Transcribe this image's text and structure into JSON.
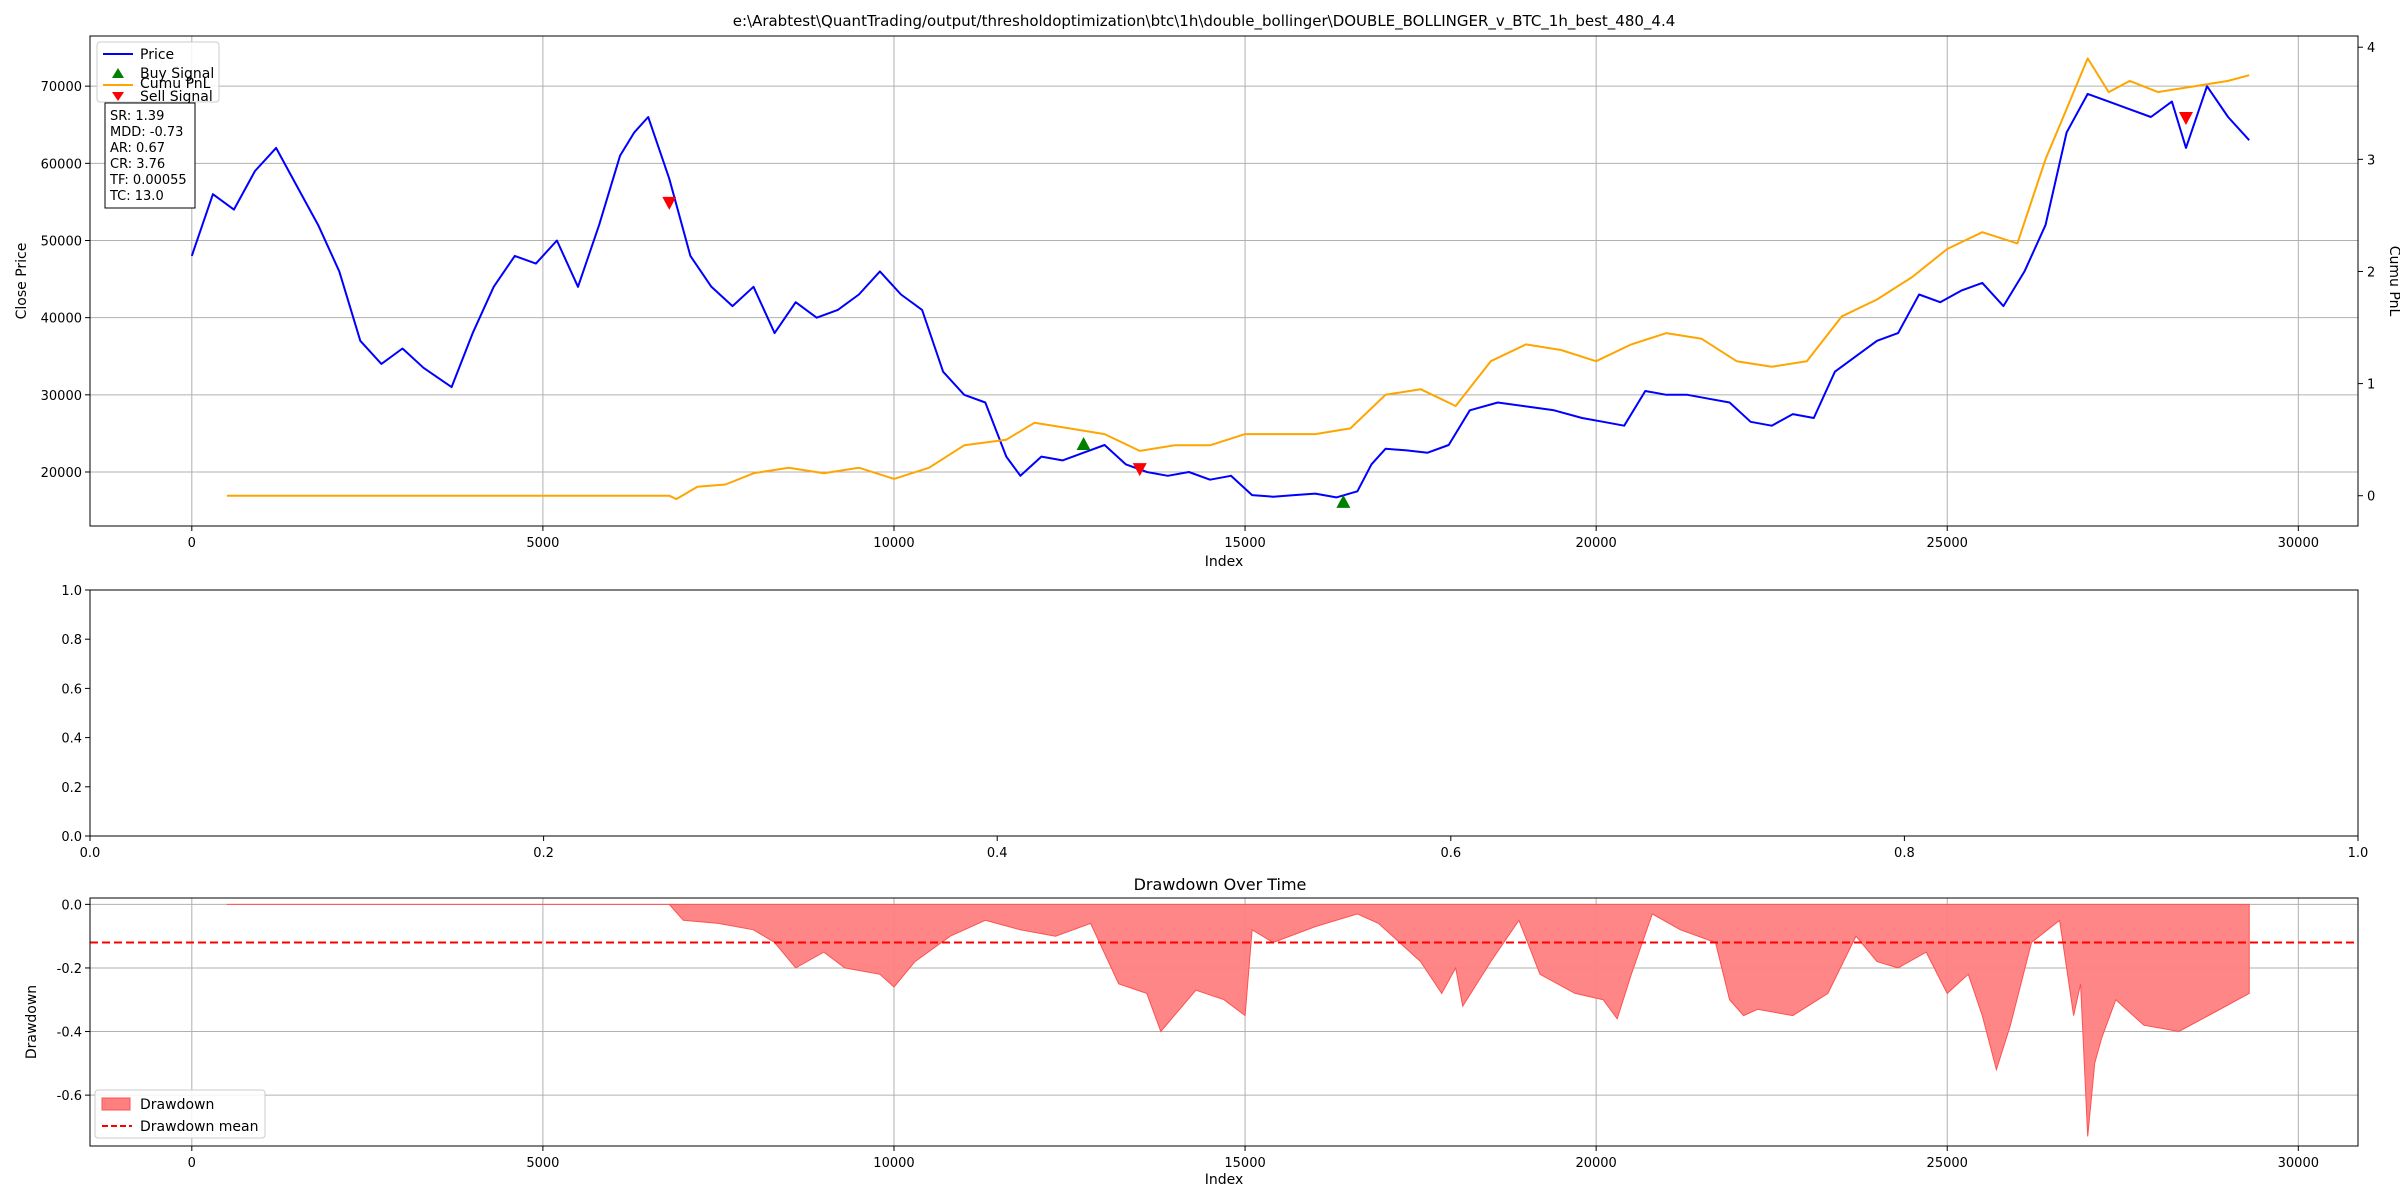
{
  "figure_title": "e:\\Arabtest\\QuantTrading/output/thresholdoptimization\\btc\\1h\\double_bollinger\\DOUBLE_BOLLINGER_v_BTC_1h_best_480_4.4",
  "colors": {
    "price": "#0000ff",
    "pnl": "#ffa500",
    "buy": "#008000",
    "sell": "#ff0000",
    "drawdown_fill": "#ff8080",
    "drawdown_mean": "#ff0000",
    "grid": "#b0b0b0"
  },
  "metrics_box": [
    "SR: 1.39",
    "MDD: -0.73",
    "AR: 0.67",
    "CR: 3.76",
    "TF: 0.00055",
    "TC: 13.0"
  ],
  "chart_data": [
    {
      "type": "line",
      "title": "e:\\Arabtest\\QuantTrading/output/thresholdoptimization\\btc\\1h\\double_bollinger\\DOUBLE_BOLLINGER_v_BTC_1h_best_480_4.4",
      "xlabel": "Index",
      "ylabel": "Close Price",
      "y2label": "Cumu PnL",
      "xlim": [
        -1450,
        30850
      ],
      "ylim": [
        13000,
        76500
      ],
      "y2lim": [
        -0.27,
        4.1
      ],
      "xticks": [
        "0",
        "5000",
        "10000",
        "15000",
        "20000",
        "25000",
        "30000"
      ],
      "yticks": [
        "20000",
        "30000",
        "40000",
        "50000",
        "60000",
        "70000"
      ],
      "y2ticks": [
        "0",
        "1",
        "2",
        "3",
        "4"
      ],
      "grid": true,
      "legend_position": "top-left",
      "legend": [
        "Price",
        "Buy Signal",
        "Cumu PnL",
        "Sell Signal"
      ],
      "series": [
        {
          "name": "Price",
          "axis": "left",
          "x": [
            0,
            300,
            600,
            900,
            1200,
            1500,
            1800,
            2100,
            2400,
            2700,
            3000,
            3300,
            3700,
            4000,
            4300,
            4600,
            4900,
            5200,
            5500,
            5800,
            6100,
            6300,
            6500,
            6800,
            7100,
            7400,
            7700,
            8000,
            8300,
            8600,
            8900,
            9200,
            9500,
            9800,
            10100,
            10400,
            10700,
            11000,
            11300,
            11600,
            11800,
            12100,
            12400,
            12700,
            13000,
            13300,
            13600,
            13900,
            14200,
            14500,
            14800,
            15100,
            15400,
            15700,
            16000,
            16300,
            16600,
            16800,
            17000,
            17300,
            17600,
            17900,
            18200,
            18600,
            19000,
            19400,
            19800,
            20100,
            20400,
            20700,
            21000,
            21300,
            21600,
            21900,
            22200,
            22500,
            22800,
            23100,
            23400,
            23700,
            24000,
            24300,
            24600,
            24900,
            25200,
            25500,
            25800,
            26100,
            26400,
            26700,
            27000,
            27300,
            27600,
            27900,
            28200,
            28400,
            28700,
            29000,
            29300
          ],
          "y": [
            48000,
            56000,
            54000,
            59000,
            62000,
            57000,
            52000,
            46000,
            37000,
            34000,
            36000,
            33500,
            31000,
            38000,
            44000,
            48000,
            47000,
            50000,
            44000,
            52000,
            61000,
            64000,
            66000,
            58000,
            48000,
            44000,
            41500,
            44000,
            38000,
            42000,
            40000,
            41000,
            43000,
            46000,
            43000,
            41000,
            33000,
            30000,
            29000,
            22000,
            19500,
            22000,
            21500,
            22500,
            23500,
            21000,
            20000,
            19500,
            20000,
            19000,
            19500,
            17000,
            16800,
            17000,
            17200,
            16700,
            17500,
            21000,
            23000,
            22800,
            22500,
            23500,
            28000,
            29000,
            28500,
            28000,
            27000,
            26500,
            26000,
            30500,
            30000,
            30000,
            29500,
            29000,
            26500,
            26000,
            27500,
            27000,
            33000,
            35000,
            37000,
            38000,
            43000,
            42000,
            43500,
            44500,
            41500,
            46000,
            52000,
            64000,
            69000,
            68000,
            67000,
            66000,
            68000,
            62000,
            70000,
            66000,
            63000
          ]
        },
        {
          "name": "Cumu PnL",
          "axis": "right",
          "x": [
            500,
            2000,
            4000,
            6000,
            6800,
            6900,
            7200,
            7600,
            8000,
            8500,
            9000,
            9500,
            10000,
            10500,
            11000,
            11600,
            12000,
            12500,
            13000,
            13500,
            14000,
            14500,
            15000,
            15500,
            16000,
            16500,
            17000,
            17500,
            18000,
            18500,
            19000,
            19500,
            20000,
            20500,
            21000,
            21500,
            22000,
            22500,
            23000,
            23500,
            24000,
            24500,
            25000,
            25500,
            26000,
            26400,
            26600,
            26800,
            27000,
            27300,
            27600,
            28000,
            28500,
            29000,
            29300
          ],
          "y": [
            0,
            0,
            0,
            0,
            0,
            -0.03,
            0.08,
            0.1,
            0.2,
            0.25,
            0.2,
            0.25,
            0.15,
            0.25,
            0.45,
            0.5,
            0.65,
            0.6,
            0.55,
            0.4,
            0.45,
            0.45,
            0.55,
            0.55,
            0.55,
            0.6,
            0.9,
            0.95,
            0.8,
            1.2,
            1.35,
            1.3,
            1.2,
            1.35,
            1.45,
            1.4,
            1.2,
            1.15,
            1.2,
            1.6,
            1.75,
            1.95,
            2.2,
            2.35,
            2.25,
            3.0,
            3.3,
            3.6,
            3.9,
            3.6,
            3.7,
            3.6,
            3.65,
            3.7,
            3.75
          ]
        }
      ],
      "buy_signals": [
        {
          "x": 16400,
          "y": 16000
        },
        {
          "x": 12700,
          "y": 23500
        }
      ],
      "sell_signals": [
        {
          "x": 6800,
          "y": 55000
        },
        {
          "x": 13500,
          "y": 20500
        },
        {
          "x": 28400,
          "y": 66000
        }
      ]
    },
    {
      "type": "line",
      "title": "",
      "xlim": [
        0,
        1
      ],
      "ylim": [
        0,
        1
      ],
      "xticks": [
        "0.0",
        "0.2",
        "0.4",
        "0.6",
        "0.8",
        "1.0"
      ],
      "yticks": [
        "0.0",
        "0.2",
        "0.4",
        "0.6",
        "0.8",
        "1.0"
      ],
      "series": []
    },
    {
      "type": "area",
      "title": "Drawdown Over Time",
      "xlabel": "Index",
      "ylabel": "Drawdown",
      "xlim": [
        -1450,
        30850
      ],
      "ylim": [
        -0.76,
        0.02
      ],
      "xticks": [
        "0",
        "5000",
        "10000",
        "15000",
        "20000",
        "25000",
        "30000"
      ],
      "yticks": [
        "0.0",
        "-0.2",
        "-0.4",
        "-0.6"
      ],
      "grid": true,
      "legend_position": "bottom-left",
      "legend": [
        "Drawdown",
        "Drawdown mean"
      ],
      "drawdown_mean": -0.12,
      "series": [
        {
          "name": "Drawdown",
          "x": [
            500,
            6800,
            7000,
            7500,
            8000,
            8300,
            8600,
            9000,
            9300,
            9800,
            10000,
            10300,
            10800,
            11300,
            11800,
            12300,
            12800,
            13200,
            13600,
            13800,
            14300,
            14700,
            15000,
            15100,
            15400,
            16000,
            16600,
            16900,
            17500,
            17800,
            18000,
            18100,
            18500,
            18900,
            19200,
            19700,
            20100,
            20300,
            20500,
            20800,
            21200,
            21700,
            21900,
            22100,
            22300,
            22800,
            23300,
            23700,
            24000,
            24300,
            24700,
            25000,
            25300,
            25500,
            25700,
            25900,
            26200,
            26600,
            26800,
            26900,
            27000,
            27100,
            27200,
            27400,
            27800,
            28300,
            28800,
            29300
          ],
          "y": [
            0,
            0,
            -0.05,
            -0.06,
            -0.08,
            -0.12,
            -0.2,
            -0.15,
            -0.2,
            -0.22,
            -0.26,
            -0.18,
            -0.1,
            -0.05,
            -0.08,
            -0.1,
            -0.06,
            -0.25,
            -0.28,
            -0.4,
            -0.27,
            -0.3,
            -0.35,
            -0.08,
            -0.12,
            -0.07,
            -0.03,
            -0.06,
            -0.18,
            -0.28,
            -0.2,
            -0.32,
            -0.18,
            -0.05,
            -0.22,
            -0.28,
            -0.3,
            -0.36,
            -0.22,
            -0.03,
            -0.08,
            -0.12,
            -0.3,
            -0.35,
            -0.33,
            -0.35,
            -0.28,
            -0.1,
            -0.18,
            -0.2,
            -0.15,
            -0.28,
            -0.22,
            -0.35,
            -0.52,
            -0.38,
            -0.12,
            -0.05,
            -0.35,
            -0.25,
            -0.73,
            -0.5,
            -0.42,
            -0.3,
            -0.38,
            -0.4,
            -0.34,
            -0.28
          ]
        }
      ]
    }
  ]
}
